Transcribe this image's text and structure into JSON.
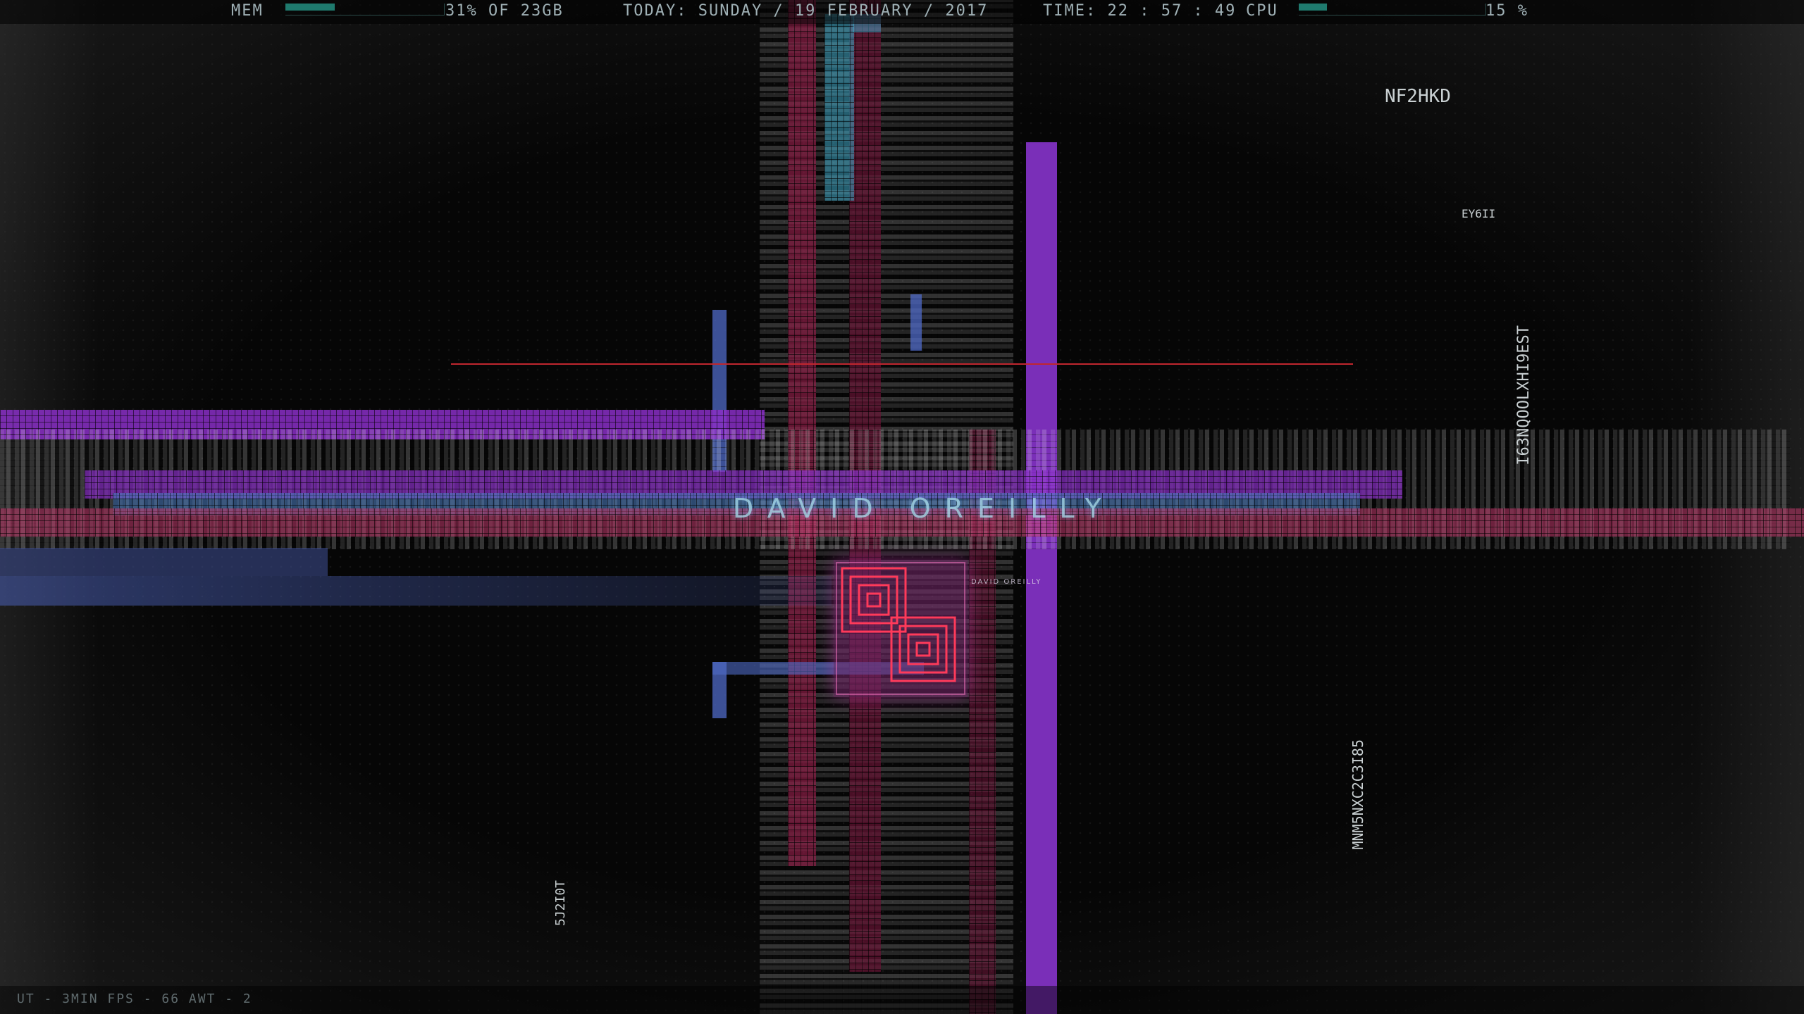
{
  "status_bar": {
    "mem_label": "MEM",
    "mem_percent": 31,
    "mem_text": "31% OF 23GB",
    "date_text": "TODAY: SUNDAY  /  19 FEBRUARY  /  2017",
    "time_text": "TIME: 22 : 57 : 49",
    "cpu_label": "CPU",
    "cpu_percent": 15,
    "cpu_text": "15 %"
  },
  "bottom_bar": {
    "info_text": "UT - 3MIN   FPS - 66   AWT - 2"
  },
  "wallpaper": {
    "center_title": "DAVID OREILLY",
    "small_title": "DAVID OREILLY",
    "floating_glyphs": [
      "NF2HKD",
      "EY6II",
      "I63NQOOLXHI9EST",
      "MNM5NXC2C3I85",
      "5J2I0T"
    ],
    "colors": {
      "purple": "#8a2fc7",
      "magenta": "#c23a6e",
      "blue": "#4f6ac7",
      "cyan": "#3fa9c9",
      "teal_meter": "#1f7a6e"
    }
  }
}
